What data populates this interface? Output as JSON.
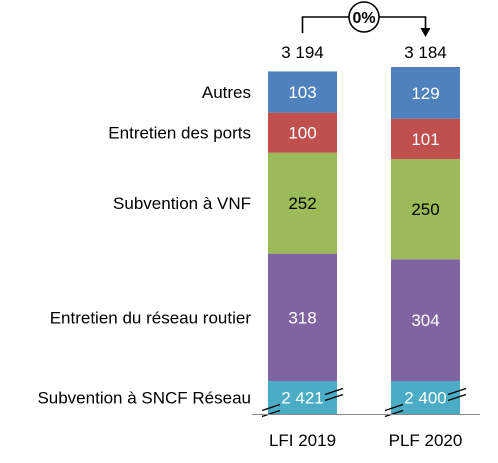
{
  "chart_data": {
    "type": "bar",
    "stacked": true,
    "axis_break": true,
    "categories": [
      "LFI 2019",
      "PLF 2020"
    ],
    "totals": [
      "3 194",
      "3 184"
    ],
    "change_label": "0%",
    "series": [
      {
        "name": "Subvention à SNCF Réseau",
        "values": [
          2421,
          2400
        ],
        "labels": [
          "2 421",
          "2 400"
        ],
        "color": "#4bacc6"
      },
      {
        "name": "Entretien du réseau routier",
        "values": [
          318,
          304
        ],
        "labels": [
          "318",
          "304"
        ],
        "color": "#8064a2"
      },
      {
        "name": "Subvention à VNF",
        "values": [
          252,
          250
        ],
        "labels": [
          "252",
          "250"
        ],
        "color": "#9bbb59"
      },
      {
        "name": "Entretien des ports",
        "values": [
          100,
          101
        ],
        "labels": [
          "100",
          "101"
        ],
        "color": "#c0504d"
      },
      {
        "name": "Autres",
        "values": [
          103,
          129
        ],
        "labels": [
          "103",
          "129"
        ],
        "color": "#4f81bd"
      }
    ],
    "label_colors": {
      "Subvention à SNCF Réseau": "#ffffff",
      "Entretien du réseau routier": "#ffffff",
      "Subvention à VNF": "#000000",
      "Entretien des ports": "#ffffff",
      "Autres": "#ffffff"
    },
    "grid": false,
    "legend": "left"
  }
}
